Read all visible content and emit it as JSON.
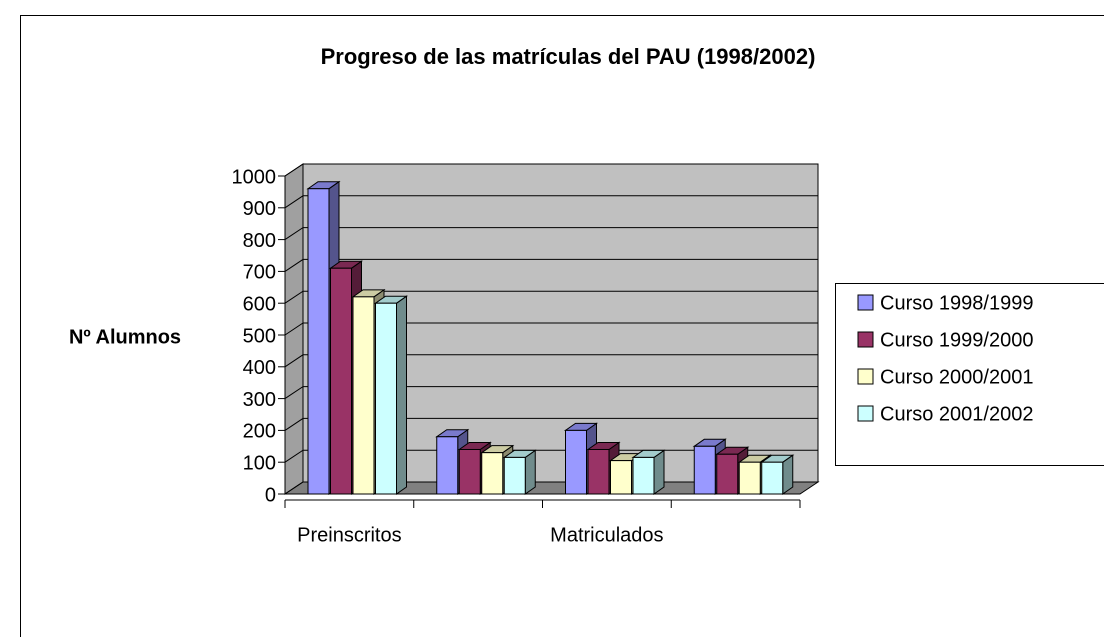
{
  "chart_data": {
    "type": "bar3d",
    "title": "Progreso de las matrículas del PAU (1998/2002)",
    "y_label": "Nº Alumnos",
    "categories": [
      "Preinscritos",
      null,
      "Matriculados",
      null
    ],
    "series": [
      {
        "name": "Curso 1998/1999",
        "color": "#9999ff",
        "values": [
          960,
          180,
          200,
          150
        ]
      },
      {
        "name": "Curso 1999/2000",
        "color": "#993366",
        "values": [
          710,
          140,
          140,
          125
        ]
      },
      {
        "name": "Curso 2000/2001",
        "color": "#ffffcc",
        "values": [
          620,
          130,
          105,
          100
        ]
      },
      {
        "name": "Curso 2001/2002",
        "color": "#ccffff",
        "values": [
          600,
          115,
          115,
          100
        ]
      }
    ],
    "ylim": [
      0,
      1000
    ],
    "yticks": [
      0,
      100,
      200,
      300,
      400,
      500,
      600,
      700,
      800,
      900,
      1000
    ],
    "grid": true,
    "legend": "right"
  }
}
